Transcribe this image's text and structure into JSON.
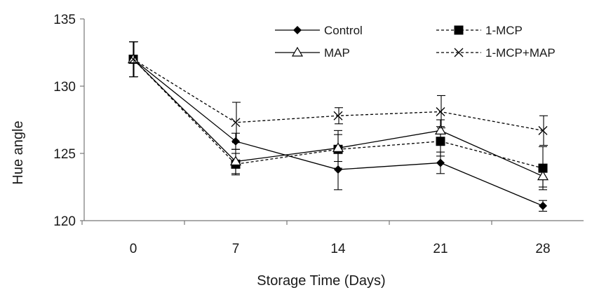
{
  "chart_data": {
    "type": "line",
    "title": "",
    "xlabel": "Storage Time (Days)",
    "ylabel": "Hue angle",
    "x": [
      0,
      7,
      14,
      21,
      28
    ],
    "ylim": [
      120,
      135
    ],
    "yticks": [
      120,
      125,
      130,
      135
    ],
    "grid": false,
    "legend_position": "top-right",
    "series": [
      {
        "name": "Control",
        "marker": "diamond",
        "line_style": "solid",
        "color": "#000000",
        "values": [
          132.0,
          125.9,
          123.8,
          124.3,
          121.1
        ],
        "errors": [
          1.3,
          0.6,
          1.5,
          0.8,
          0.4
        ]
      },
      {
        "name": "1-MCP",
        "marker": "square",
        "line_style": "dashed",
        "color": "#000000",
        "values": [
          132.0,
          124.2,
          125.3,
          125.9,
          123.9
        ],
        "errors": [
          1.3,
          0.8,
          1.4,
          1.1,
          1.6
        ]
      },
      {
        "name": "MAP",
        "marker": "triangle-open",
        "line_style": "solid",
        "color": "#000000",
        "values": [
          132.0,
          124.4,
          125.4,
          126.7,
          123.3
        ],
        "errors": [
          1.3,
          0.9,
          1.0,
          0.8,
          0.8
        ]
      },
      {
        "name": "1-MCP+MAP",
        "marker": "x",
        "line_style": "dashed",
        "color": "#000000",
        "values": [
          132.0,
          127.3,
          127.8,
          128.1,
          126.7
        ],
        "errors": [
          1.3,
          1.5,
          0.6,
          1.2,
          1.1
        ]
      }
    ]
  }
}
